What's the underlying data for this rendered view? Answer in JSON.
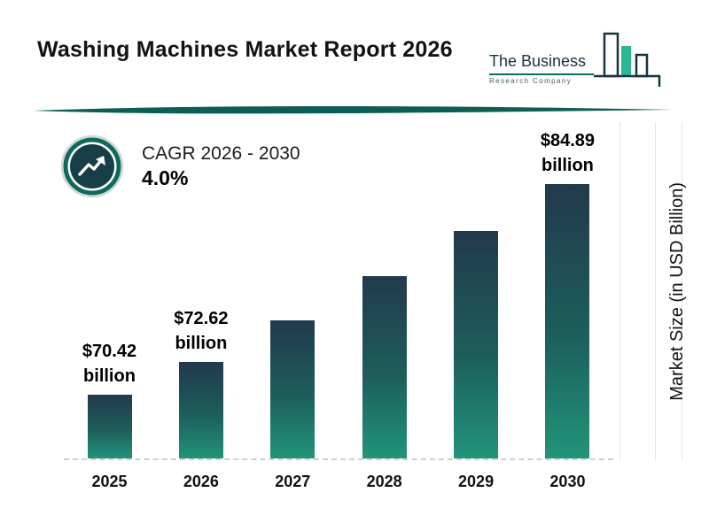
{
  "header": {
    "title": "Washing Machines Market Report 2026"
  },
  "logo": {
    "line1": "The Business",
    "line2": "Research Company"
  },
  "cagr": {
    "label": "CAGR 2026 - 2030",
    "value": "4.0%"
  },
  "chart_data": {
    "type": "bar",
    "title": "Washing Machines Market Report 2026",
    "categories": [
      "2025",
      "2026",
      "2027",
      "2028",
      "2029",
      "2030"
    ],
    "values": [
      70.42,
      72.62,
      75.52,
      78.55,
      81.69,
      84.89
    ],
    "value_labels": [
      "$70.42 billion",
      "$72.62 billion",
      "",
      "",
      "",
      "$84.89 billion"
    ],
    "xlabel": "",
    "ylabel": "Market Size (in USD Billion)",
    "ylim": [
      66,
      88
    ],
    "legend_position": "none",
    "grid": "faint vertical lines at right edge, dashed baseline",
    "colors": {
      "bar_gradient_top": "#22394d",
      "bar_gradient_bottom": "#21947a",
      "accent_teal": "#0d6a5c",
      "badge_dark": "#163f47"
    }
  }
}
